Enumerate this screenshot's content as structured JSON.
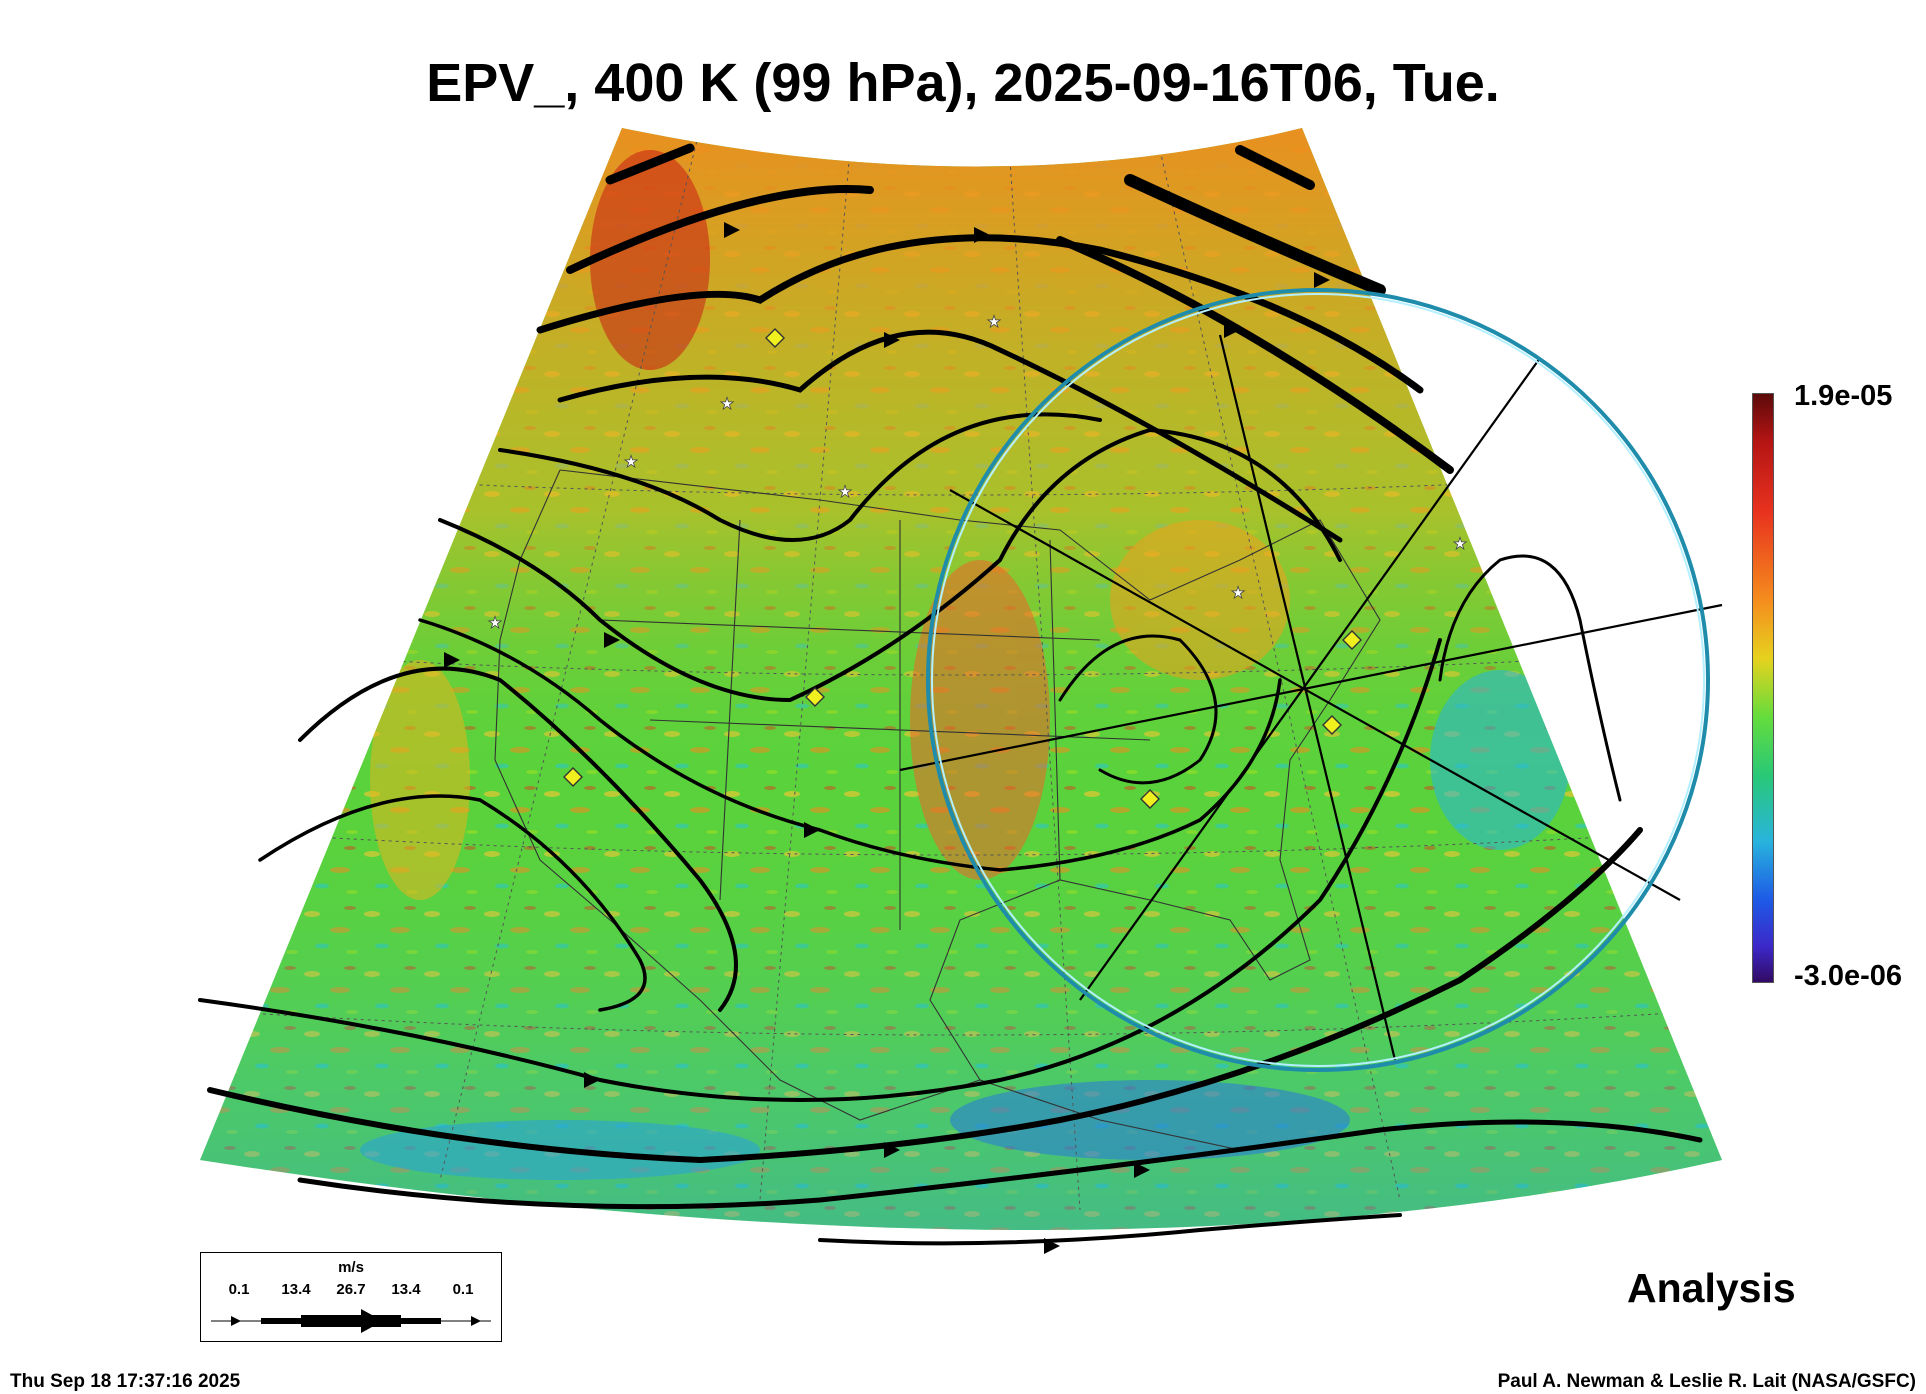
{
  "title": "EPV_, 400 K (99 hPa), 2025-09-16T06, Tue.",
  "colorbar": {
    "max_label": "1.9e-05",
    "min_label": "-3.0e-06"
  },
  "label_analysis": "Analysis",
  "timestamp": "Thu Sep 18 17:37:16 2025",
  "credit": "Paul A. Newman & Leslie R. Lait (NASA/GSFC)",
  "legend": {
    "unit": "m/s",
    "values": [
      "0.1",
      "13.4",
      "26.7",
      "13.4",
      "0.1"
    ]
  },
  "colors": {
    "background_field": "#5ad23c",
    "high_field": "#f08c1e",
    "streamline": "#000000",
    "ring": "#32b4d2"
  }
}
